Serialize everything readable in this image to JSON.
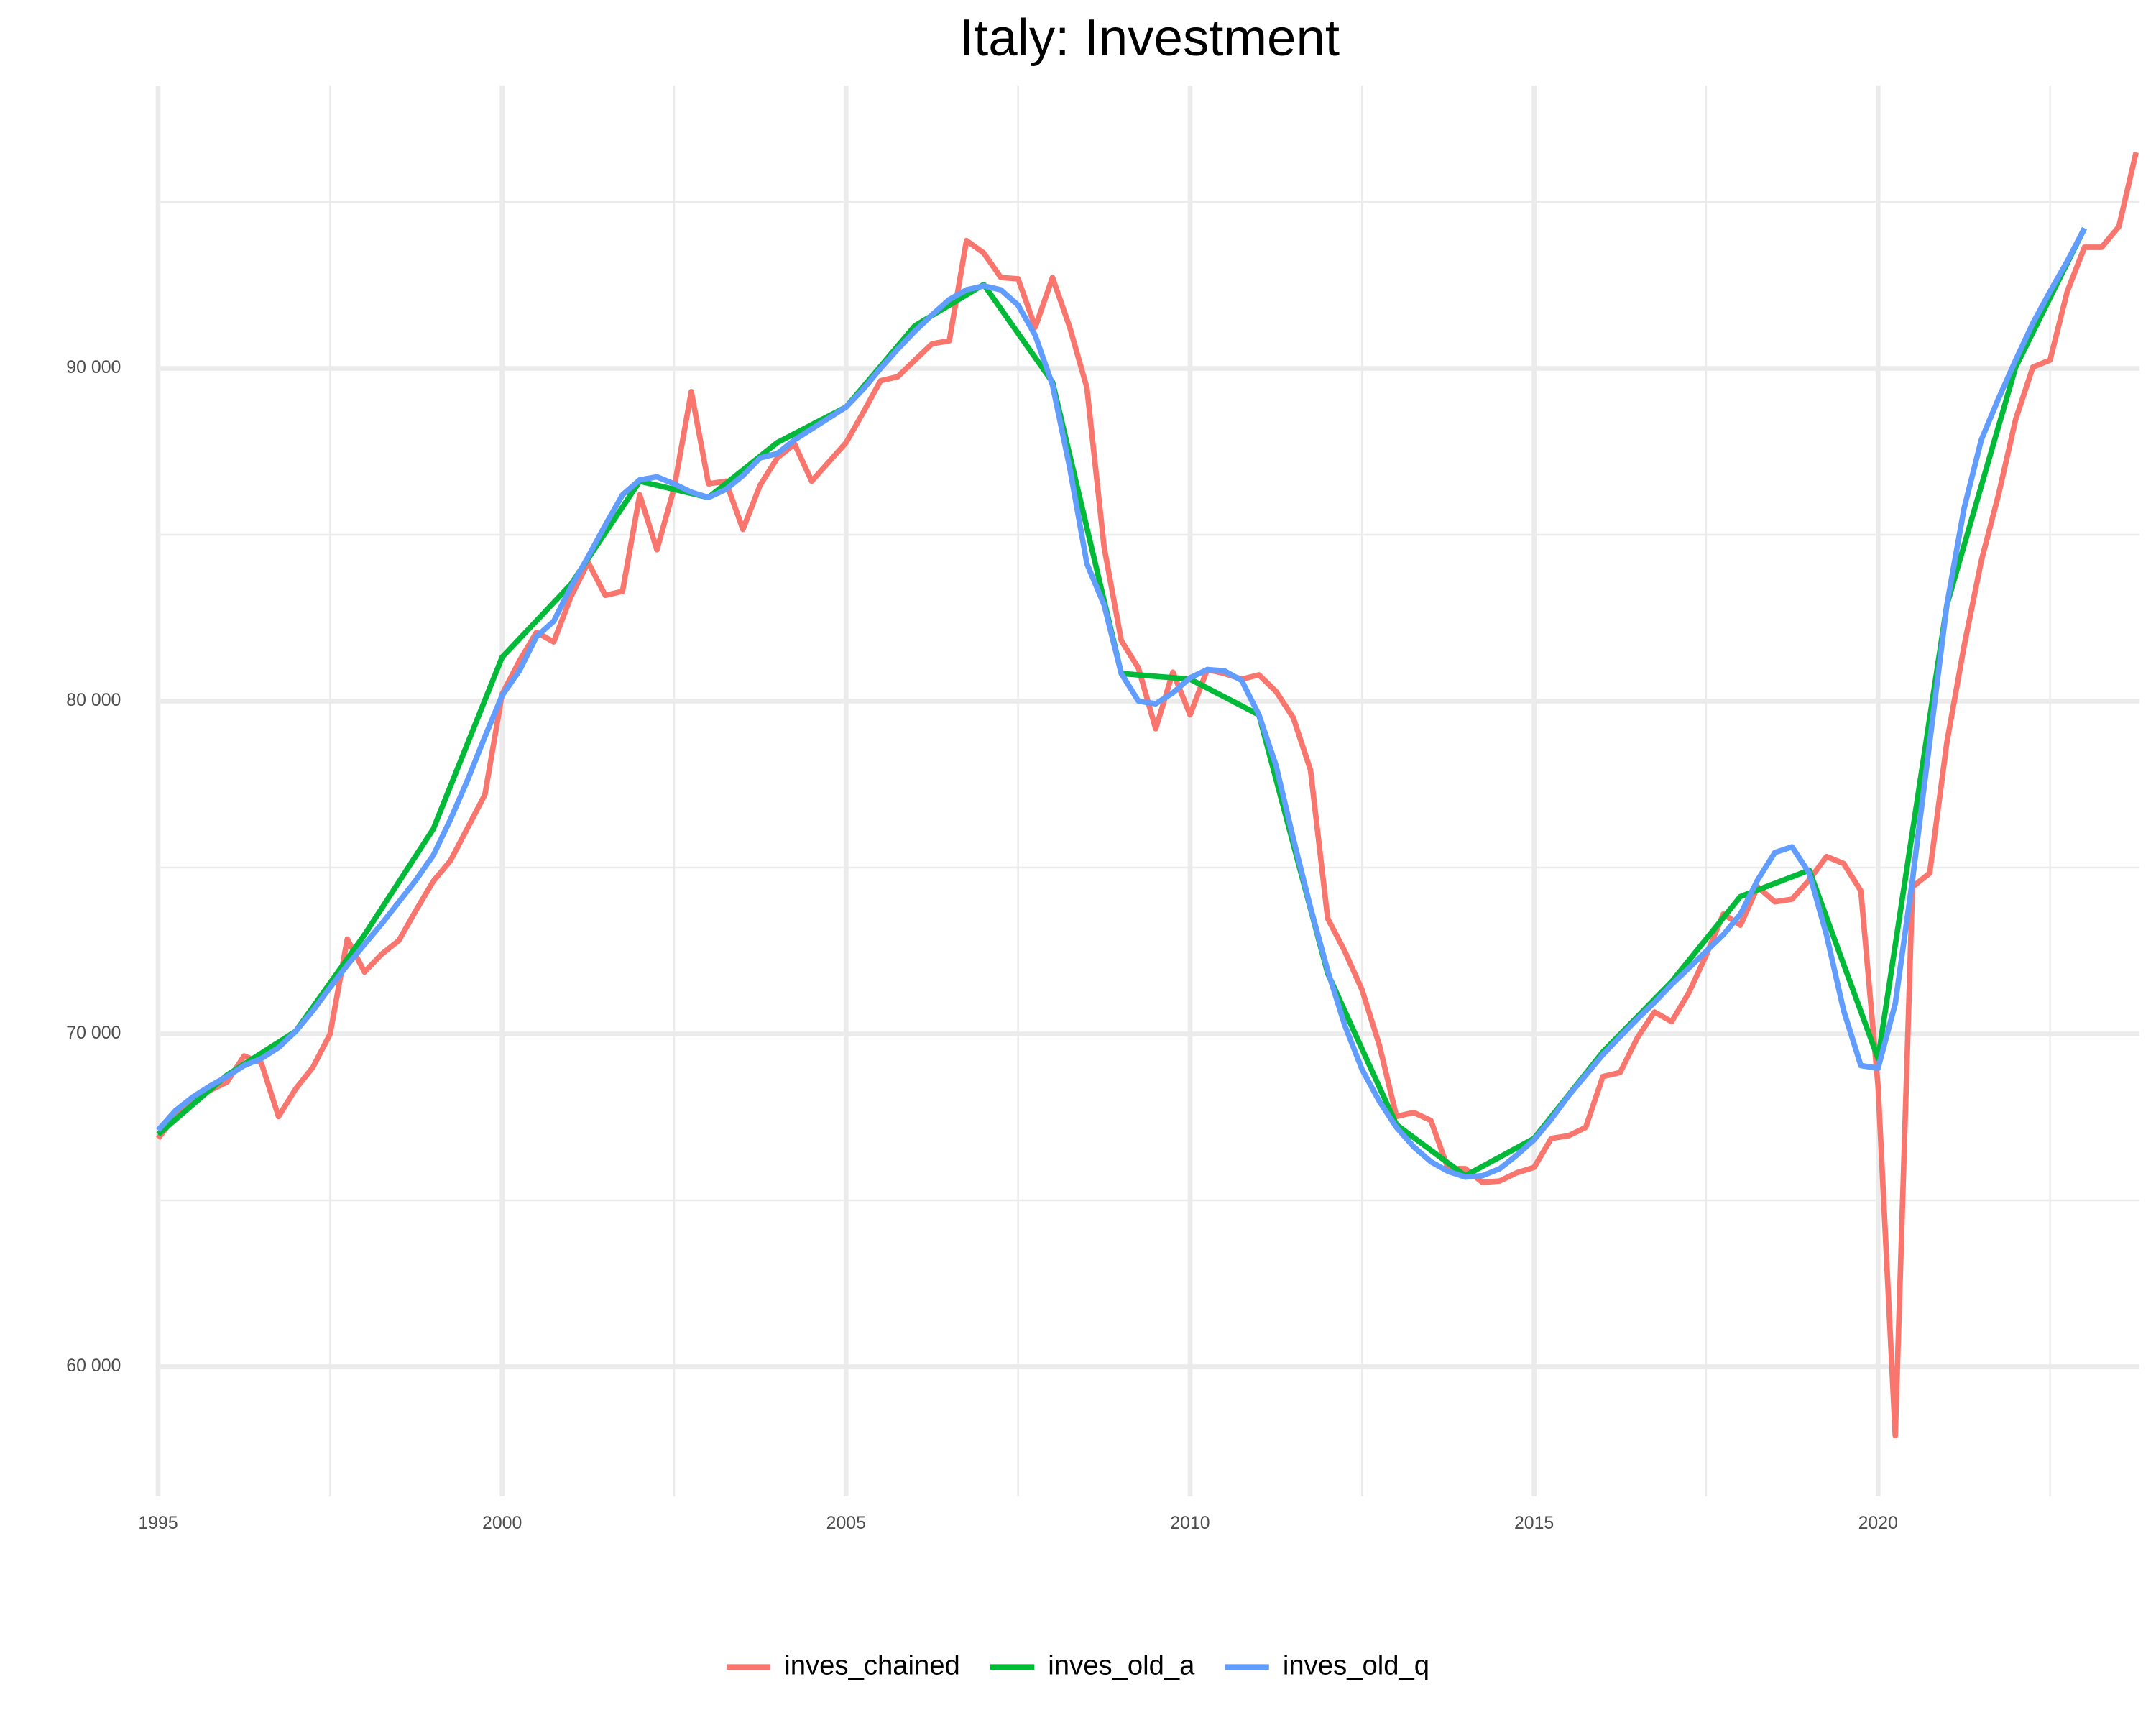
{
  "chart_data": {
    "type": "line",
    "title": "Italy: Investment",
    "xlim": [
      1995,
      2023.8
    ],
    "xticks": [
      1995,
      2000,
      2005,
      2010,
      2015,
      2020
    ],
    "xminorticks": [
      1997.5,
      2002.5,
      2007.5,
      2012.5,
      2017.5,
      2022.5
    ],
    "ylim": [
      56100,
      98500
    ],
    "yticks": [
      {
        "value": 60000,
        "label": "60 000"
      },
      {
        "value": 70000,
        "label": "70 000"
      },
      {
        "value": 80000,
        "label": "80 000"
      },
      {
        "value": 90000,
        "label": "90 000"
      }
    ],
    "yminorticks": [
      65000,
      75000,
      85000,
      95000
    ],
    "grid": true,
    "legend": "bottom",
    "series": [
      {
        "name": "inves_chained",
        "color": "#F8766D",
        "x": [
          1995,
          1995.25,
          1995.5,
          1995.75,
          1996,
          1996.25,
          1996.5,
          1996.75,
          1997,
          1997.25,
          1997.5,
          1997.75,
          1998,
          1998.25,
          1998.5,
          1998.75,
          1999,
          1999.25,
          1999.5,
          1999.75,
          2000,
          2000.25,
          2000.5,
          2000.75,
          2001,
          2001.25,
          2001.5,
          2001.75,
          2002,
          2002.25,
          2002.5,
          2002.75,
          2003,
          2003.25,
          2003.5,
          2003.75,
          2004,
          2004.25,
          2004.5,
          2004.75,
          2005,
          2005.25,
          2005.5,
          2005.75,
          2006,
          2006.25,
          2006.5,
          2006.75,
          2007,
          2007.25,
          2007.5,
          2007.75,
          2008,
          2008.25,
          2008.5,
          2008.75,
          2009,
          2009.25,
          2009.5,
          2009.75,
          2010,
          2010.25,
          2010.5,
          2010.75,
          2011,
          2011.25,
          2011.5,
          2011.75,
          2012,
          2012.25,
          2012.5,
          2012.75,
          2013,
          2013.25,
          2013.5,
          2013.75,
          2014,
          2014.25,
          2014.5,
          2014.75,
          2015,
          2015.25,
          2015.5,
          2015.75,
          2016,
          2016.25,
          2016.5,
          2016.75,
          2017,
          2017.25,
          2017.5,
          2017.75,
          2018,
          2018.25,
          2018.5,
          2018.75,
          2019,
          2019.25,
          2019.5,
          2019.75,
          2020,
          2020.25,
          2020.5,
          2020.75,
          2021,
          2021.25,
          2021.5,
          2021.75,
          2022,
          2022.25,
          2022.5,
          2022.75,
          2023,
          2023.25,
          2023.5,
          2023.75
        ],
        "values": [
          66860,
          67520,
          68020,
          68300,
          68550,
          69340,
          69130,
          67520,
          68350,
          69000,
          70000,
          72850,
          71860,
          72400,
          72810,
          73720,
          74590,
          75210,
          76200,
          77190,
          80210,
          81200,
          82070,
          81780,
          83140,
          84170,
          83180,
          83300,
          86200,
          84550,
          86400,
          89300,
          86530,
          86610,
          85160,
          86490,
          87310,
          87730,
          86610,
          87190,
          87770,
          88680,
          89630,
          89750,
          90250,
          90740,
          90830,
          93840,
          93470,
          92730,
          92690,
          91240,
          92730,
          91240,
          89420,
          84630,
          81820,
          80990,
          79170,
          80870,
          79590,
          80950,
          80830,
          80660,
          80790,
          80290,
          79500,
          77930,
          73470,
          72480,
          71320,
          69670,
          67520,
          67640,
          67400,
          65950,
          65950,
          65540,
          65580,
          65830,
          65990,
          66860,
          66940,
          67190,
          68720,
          68840,
          69880,
          70660,
          70370,
          71240,
          72360,
          73600,
          73270,
          74420,
          73970,
          74050,
          74630,
          75330,
          75120,
          74300,
          68430,
          57930,
          74420,
          74830,
          78760,
          81650,
          84210,
          86200,
          88470,
          90040,
          90250,
          92310,
          93640,
          93640,
          94260,
          96490
        ]
      },
      {
        "name": "inves_old_a",
        "color": "#00BA38",
        "x": [
          1995,
          1996,
          1997,
          1998,
          1999,
          2000,
          2001,
          2002,
          2003,
          2004,
          2005,
          2006,
          2007,
          2008,
          2009,
          2010,
          2011,
          2012,
          2013,
          2014,
          2015,
          2016,
          2017,
          2018,
          2019,
          2020,
          2021,
          2022,
          2023
        ],
        "values": [
          66980,
          68760,
          70080,
          72980,
          76160,
          81320,
          83510,
          86610,
          86120,
          87770,
          88840,
          91280,
          92520,
          89590,
          80830,
          80660,
          79590,
          71820,
          67270,
          65740,
          66860,
          69460,
          71570,
          74130,
          74920,
          69260,
          82890,
          90040,
          94210
        ]
      },
      {
        "name": "inves_old_q",
        "color": "#619CFF",
        "x": [
          1995,
          1995.25,
          1995.5,
          1995.75,
          1996,
          1996.25,
          1996.5,
          1996.75,
          1997,
          1997.25,
          1997.5,
          1997.75,
          1998,
          1998.25,
          1998.5,
          1998.75,
          1999,
          1999.25,
          1999.5,
          1999.75,
          2000,
          2000.25,
          2000.5,
          2000.75,
          2001,
          2001.25,
          2001.5,
          2001.75,
          2002,
          2002.25,
          2002.5,
          2002.75,
          2003,
          2003.25,
          2003.5,
          2003.75,
          2004,
          2004.25,
          2004.5,
          2004.75,
          2005,
          2005.25,
          2005.5,
          2005.75,
          2006,
          2006.25,
          2006.5,
          2006.75,
          2007,
          2007.25,
          2007.5,
          2007.75,
          2008,
          2008.25,
          2008.5,
          2008.75,
          2009,
          2009.25,
          2009.5,
          2009.75,
          2010,
          2010.25,
          2010.5,
          2010.75,
          2011,
          2011.25,
          2011.5,
          2011.75,
          2012,
          2012.25,
          2012.5,
          2012.75,
          2013,
          2013.25,
          2013.5,
          2013.75,
          2014,
          2014.25,
          2014.5,
          2014.75,
          2015,
          2015.25,
          2015.5,
          2015.75,
          2016,
          2016.25,
          2016.5,
          2016.75,
          2017,
          2017.25,
          2017.5,
          2017.75,
          2018,
          2018.25,
          2018.5,
          2018.75,
          2019,
          2019.25,
          2019.5,
          2019.75,
          2020,
          2020.25,
          2020.5,
          2020.75,
          2021,
          2021.25,
          2021.5,
          2021.75,
          2022,
          2022.25,
          2022.5,
          2022.75,
          2023
        ],
        "values": [
          67110,
          67690,
          68100,
          68430,
          68720,
          69050,
          69260,
          69590,
          70080,
          70700,
          71400,
          72070,
          72690,
          73310,
          73970,
          74630,
          75370,
          76450,
          77640,
          78930,
          80170,
          80910,
          81940,
          82400,
          83430,
          84340,
          85290,
          86200,
          86650,
          86740,
          86530,
          86280,
          86120,
          86360,
          86780,
          87310,
          87440,
          87850,
          88180,
          88510,
          88840,
          89380,
          90000,
          90580,
          91120,
          91610,
          92070,
          92360,
          92480,
          92360,
          91900,
          90990,
          89500,
          87020,
          84130,
          82890,
          80830,
          80000,
          79920,
          80250,
          80700,
          80950,
          80910,
          80620,
          79590,
          78060,
          75870,
          73800,
          71900,
          70250,
          68930,
          67980,
          67190,
          66610,
          66160,
          65870,
          65700,
          65740,
          65950,
          66360,
          66820,
          67440,
          68140,
          68760,
          69380,
          69920,
          70450,
          70950,
          71490,
          71980,
          72480,
          72980,
          73600,
          74630,
          75450,
          75620,
          74830,
          72980,
          70700,
          69050,
          68970,
          70910,
          74630,
          78760,
          82890,
          85790,
          87850,
          89090,
          90250,
          91360,
          92310,
          93220,
          94210
        ]
      }
    ]
  }
}
